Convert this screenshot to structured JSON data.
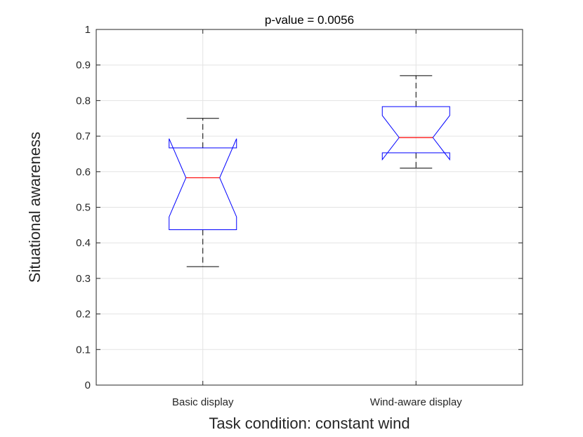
{
  "chart_data": {
    "type": "boxplot",
    "title": "p-value = 0.0056",
    "xlabel": "Task condition: constant wind",
    "ylabel": "Situational awareness",
    "ylim": [
      0,
      1
    ],
    "yticks": [
      "0",
      "0.1",
      "0.2",
      "0.3",
      "0.4",
      "0.5",
      "0.6",
      "0.7",
      "0.8",
      "0.9",
      "1"
    ],
    "grid": true,
    "notched": true,
    "categories": [
      "Basic display",
      "Wind-aware display"
    ],
    "boxes": [
      {
        "label": "Basic display",
        "whisker_low": 0.333,
        "q1": 0.437,
        "notch_low": 0.473,
        "median": 0.583,
        "notch_high": 0.693,
        "q3": 0.667,
        "whisker_high": 0.75
      },
      {
        "label": "Wind-aware display",
        "whisker_low": 0.61,
        "q1": 0.653,
        "notch_low": 0.634,
        "median": 0.696,
        "notch_high": 0.758,
        "q3": 0.783,
        "whisker_high": 0.87
      }
    ],
    "colors": {
      "box": "#0000ff",
      "median": "#ff0000",
      "whisker": "#000000",
      "grid": "#e3e3e3",
      "axis": "#262626"
    }
  }
}
